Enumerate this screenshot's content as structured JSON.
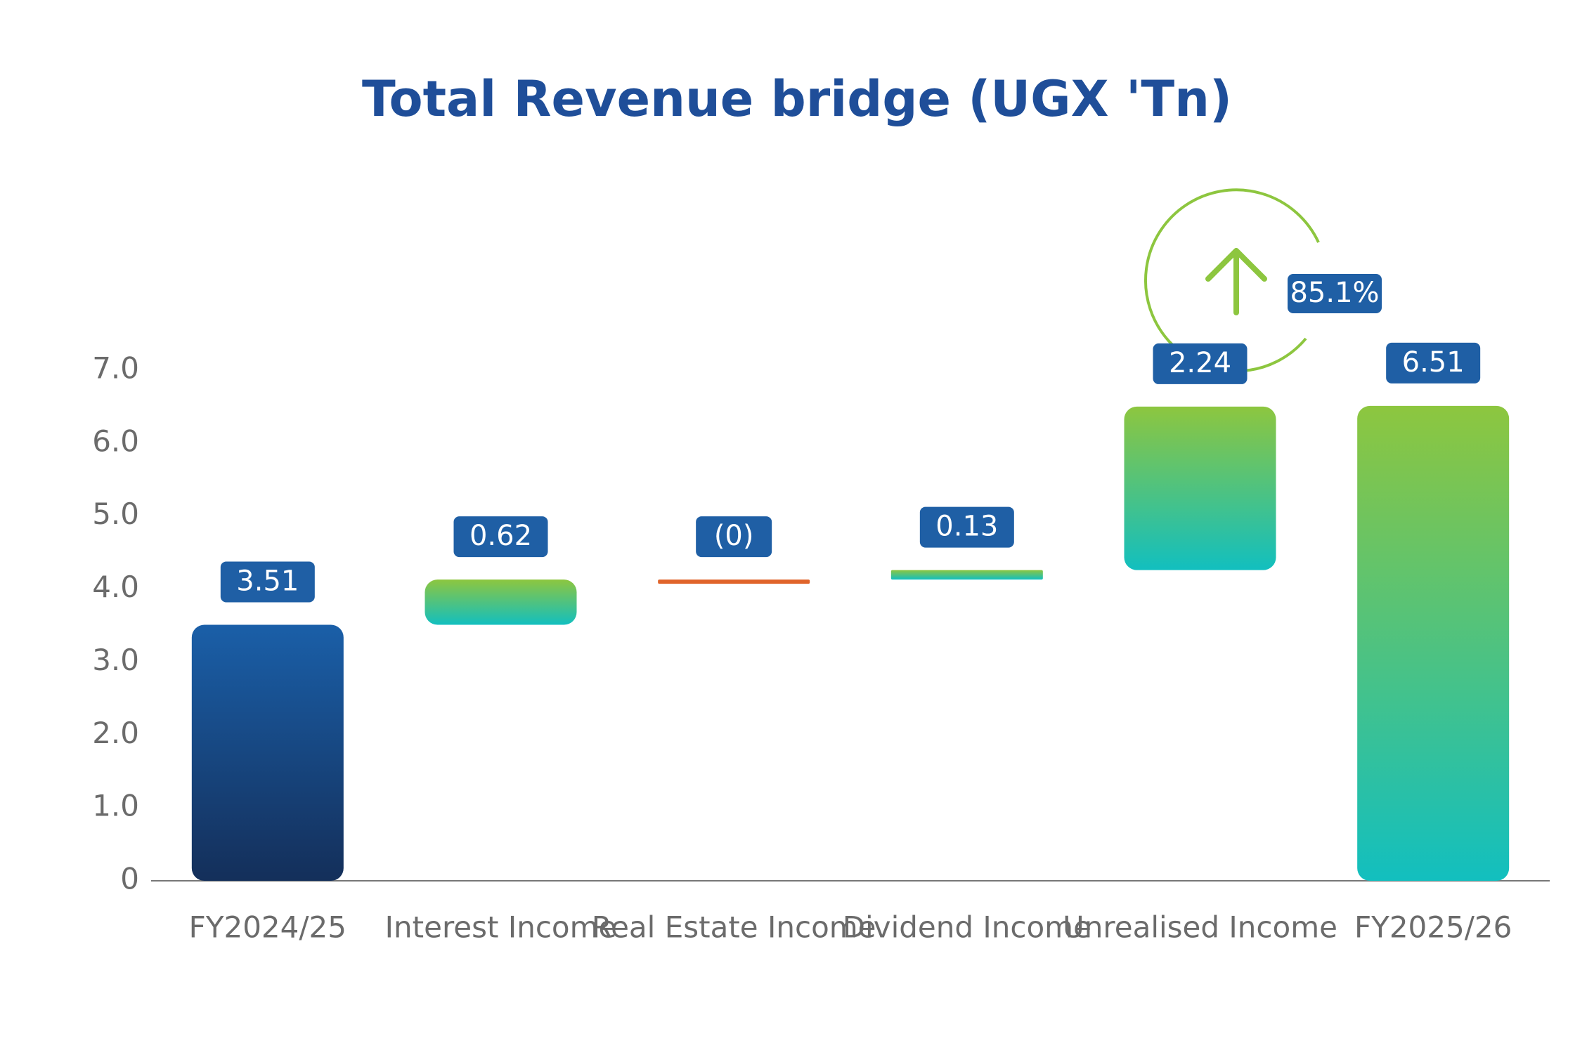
{
  "chart_data": {
    "type": "waterfall",
    "title": "Total Revenue bridge (UGX 'Tn)",
    "categories": [
      "FY2024/25",
      "Interest Income",
      "Real Estate Income",
      "Dividend Income",
      "Unrealised Income",
      "FY2025/26"
    ],
    "values": [
      3.51,
      0.62,
      0,
      0.13,
      2.24,
      6.51
    ],
    "value_labels": [
      "3.51",
      "0.62",
      "(0)",
      "0.13",
      "2.24",
      "6.51"
    ],
    "measures": [
      "total",
      "relative",
      "relative",
      "relative",
      "relative",
      "total"
    ],
    "total_start_color": "#1a5fa8",
    "total_end_color": "#8dc63f",
    "increase_color": "#8dc63f",
    "decrease_color": "#e0642a",
    "ylim": [
      0,
      7
    ],
    "yticks": [
      0,
      {
        "value": 1,
        "label": "1.0"
      },
      {
        "value": 2,
        "label": "2.0"
      },
      {
        "value": 3,
        "label": "3.0"
      },
      {
        "value": 4,
        "label": "4.0"
      },
      {
        "value": 5,
        "label": "5.0"
      },
      {
        "value": 6,
        "label": "6.0"
      },
      {
        "value": 7,
        "label": "7.0"
      }
    ],
    "annotations": [
      {
        "text": "85.1%"
      }
    ]
  }
}
